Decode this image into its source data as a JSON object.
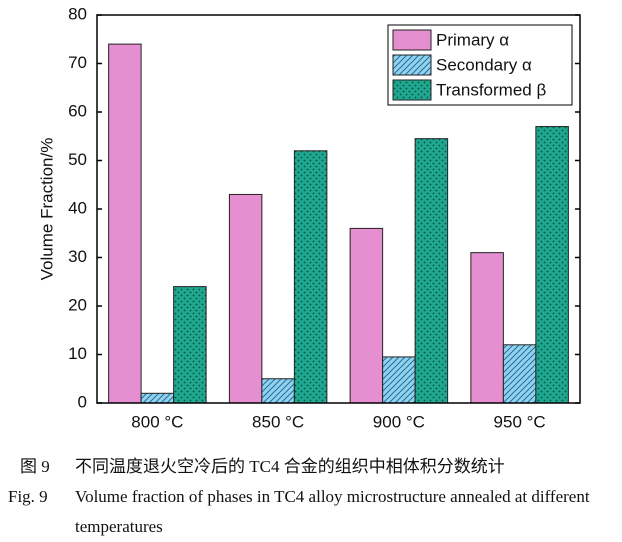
{
  "chart_data": {
    "type": "bar",
    "ylabel": "Volume Fraction/%",
    "categories": [
      "800 °C",
      "850 °C",
      "900 °C",
      "950 °C"
    ],
    "series": [
      {
        "name": "Primary α",
        "color": "#e68fd0",
        "pattern": "none",
        "values": [
          74,
          43,
          36,
          31
        ]
      },
      {
        "name": "Secondary α",
        "color": "#8fd3ee",
        "pattern": "hatch",
        "values": [
          2,
          5,
          9.5,
          12
        ]
      },
      {
        "name": "Transformed β",
        "color": "#1fa88f",
        "pattern": "dots",
        "values": [
          24,
          52,
          54.5,
          57
        ]
      }
    ],
    "ylim": [
      0,
      80
    ],
    "yticks": [
      0,
      10,
      20,
      30,
      40,
      50,
      60,
      70,
      80
    ],
    "legend": "upper-right",
    "captions": [
      {
        "label": "图 9",
        "text": "不同温度退火空冷后的 TC4 合金的组织中相体积分数统计"
      },
      {
        "label": "Fig. 9",
        "text": "Volume fraction of phases in TC4 alloy microstructure annealed at different temperatures"
      }
    ]
  }
}
